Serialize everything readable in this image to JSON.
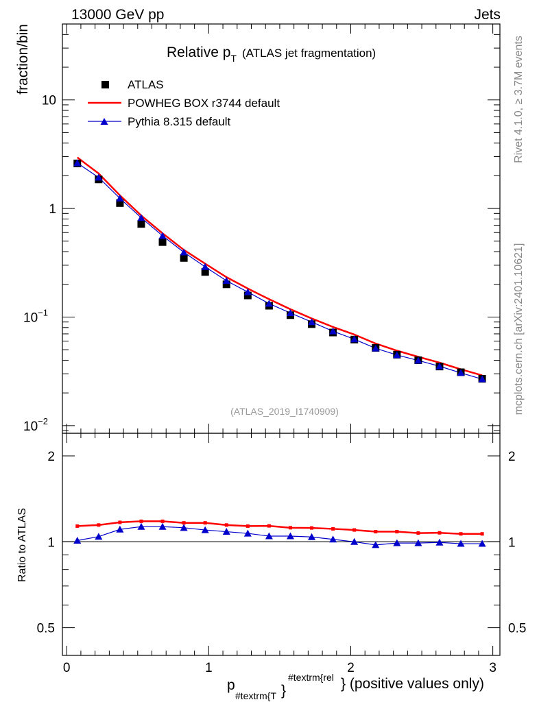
{
  "header": {
    "left": "13000 GeV pp",
    "right": "Jets"
  },
  "side": {
    "rivet": "Rivet 4.1.0, ≥ 3.7M events",
    "mcplots": "mcplots.cern.ch [arXiv:2401.10621]"
  },
  "chart_data": [
    {
      "type": "line",
      "title_main": "Relative p",
      "title_sub": "T",
      "title_rest": "(ATLAS jet fragmentation)",
      "ylabel": "fraction/bin",
      "yscale": "log",
      "ylim": [
        0.0085,
        50
      ],
      "xlim": [
        -0.03,
        3.05
      ],
      "analysis_tag": "(ATLAS_2019_I1740909)",
      "y_ticks": [
        {
          "value": 10,
          "label": "10"
        },
        {
          "value": 1,
          "label": "1"
        },
        {
          "value": 0.1,
          "label": "10",
          "exp": "−1"
        },
        {
          "value": 0.01,
          "label": "10",
          "exp": "−2"
        }
      ],
      "legend": [
        {
          "label": "ATLAS",
          "color": "#000000",
          "marker": "square"
        },
        {
          "label": "POWHEG BOX r3744 default",
          "color": "#ff0000",
          "marker": "line"
        },
        {
          "label": "Pythia 8.315 default",
          "color": "#0000cc",
          "marker": "triangle"
        }
      ],
      "x": [
        0.075,
        0.225,
        0.375,
        0.525,
        0.675,
        0.825,
        0.975,
        1.125,
        1.275,
        1.425,
        1.575,
        1.725,
        1.875,
        2.025,
        2.175,
        2.325,
        2.475,
        2.625,
        2.775,
        2.925
      ],
      "series": [
        {
          "name": "ATLAS",
          "color": "#000000",
          "values": [
            2.6,
            1.85,
            1.12,
            0.72,
            0.49,
            0.35,
            0.26,
            0.2,
            0.158,
            0.127,
            0.104,
            0.086,
            0.072,
            0.062,
            0.052,
            0.045,
            0.04,
            0.035,
            0.031,
            0.027
          ]
        },
        {
          "name": "POWHEG BOX r3744 default",
          "color": "#ff0000",
          "values": [
            2.95,
            2.1,
            1.32,
            0.86,
            0.59,
            0.415,
            0.31,
            0.233,
            0.183,
            0.146,
            0.118,
            0.097,
            0.081,
            0.069,
            0.057,
            0.049,
            0.043,
            0.038,
            0.033,
            0.029
          ]
        },
        {
          "name": "Pythia 8.315 default",
          "color": "#0000cc",
          "values": [
            2.62,
            1.93,
            1.24,
            0.82,
            0.56,
            0.395,
            0.29,
            0.216,
            0.17,
            0.133,
            0.109,
            0.09,
            0.074,
            0.0625,
            0.0515,
            0.0447,
            0.0398,
            0.0352,
            0.0306,
            0.0268
          ]
        }
      ]
    },
    {
      "type": "line",
      "ylabel": "Ratio to ATLAS",
      "yscale": "log",
      "ylim": [
        0.4,
        2.4
      ],
      "xlim": [
        -0.03,
        3.05
      ],
      "reference": 1,
      "y_ticks": [
        {
          "value": 2,
          "label": "2"
        },
        {
          "value": 1,
          "label": "1"
        },
        {
          "value": 0.5,
          "label": "0.5"
        }
      ],
      "x_ticks": [
        {
          "value": 0,
          "label": "0"
        },
        {
          "value": 1,
          "label": "1"
        },
        {
          "value": 2,
          "label": "2"
        },
        {
          "value": 3,
          "label": "3"
        }
      ],
      "xlabel_main": "p",
      "xlabel_sub": "#textrm{T",
      "xlabel_brace": "}",
      "xlabel_sup": "#textrm{rel",
      "xlabel_rest": "} (positive values only)",
      "x": [
        0.075,
        0.225,
        0.375,
        0.525,
        0.675,
        0.825,
        0.975,
        1.125,
        1.275,
        1.425,
        1.575,
        1.725,
        1.875,
        2.025,
        2.175,
        2.325,
        2.475,
        2.625,
        2.775,
        2.925
      ],
      "series": [
        {
          "name": "POWHEG BOX r3744 default",
          "color": "#ff0000",
          "values": [
            1.135,
            1.145,
            1.17,
            1.18,
            1.18,
            1.165,
            1.165,
            1.145,
            1.135,
            1.137,
            1.12,
            1.118,
            1.11,
            1.1,
            1.085,
            1.085,
            1.073,
            1.075,
            1.066,
            1.066
          ]
        },
        {
          "name": "Pythia 8.315 default",
          "color": "#0000cc",
          "values": [
            1.01,
            1.043,
            1.105,
            1.13,
            1.13,
            1.12,
            1.1,
            1.085,
            1.07,
            1.047,
            1.047,
            1.04,
            1.02,
            1.0,
            0.975,
            0.99,
            0.99,
            0.995,
            0.985,
            0.985
          ]
        }
      ]
    }
  ]
}
